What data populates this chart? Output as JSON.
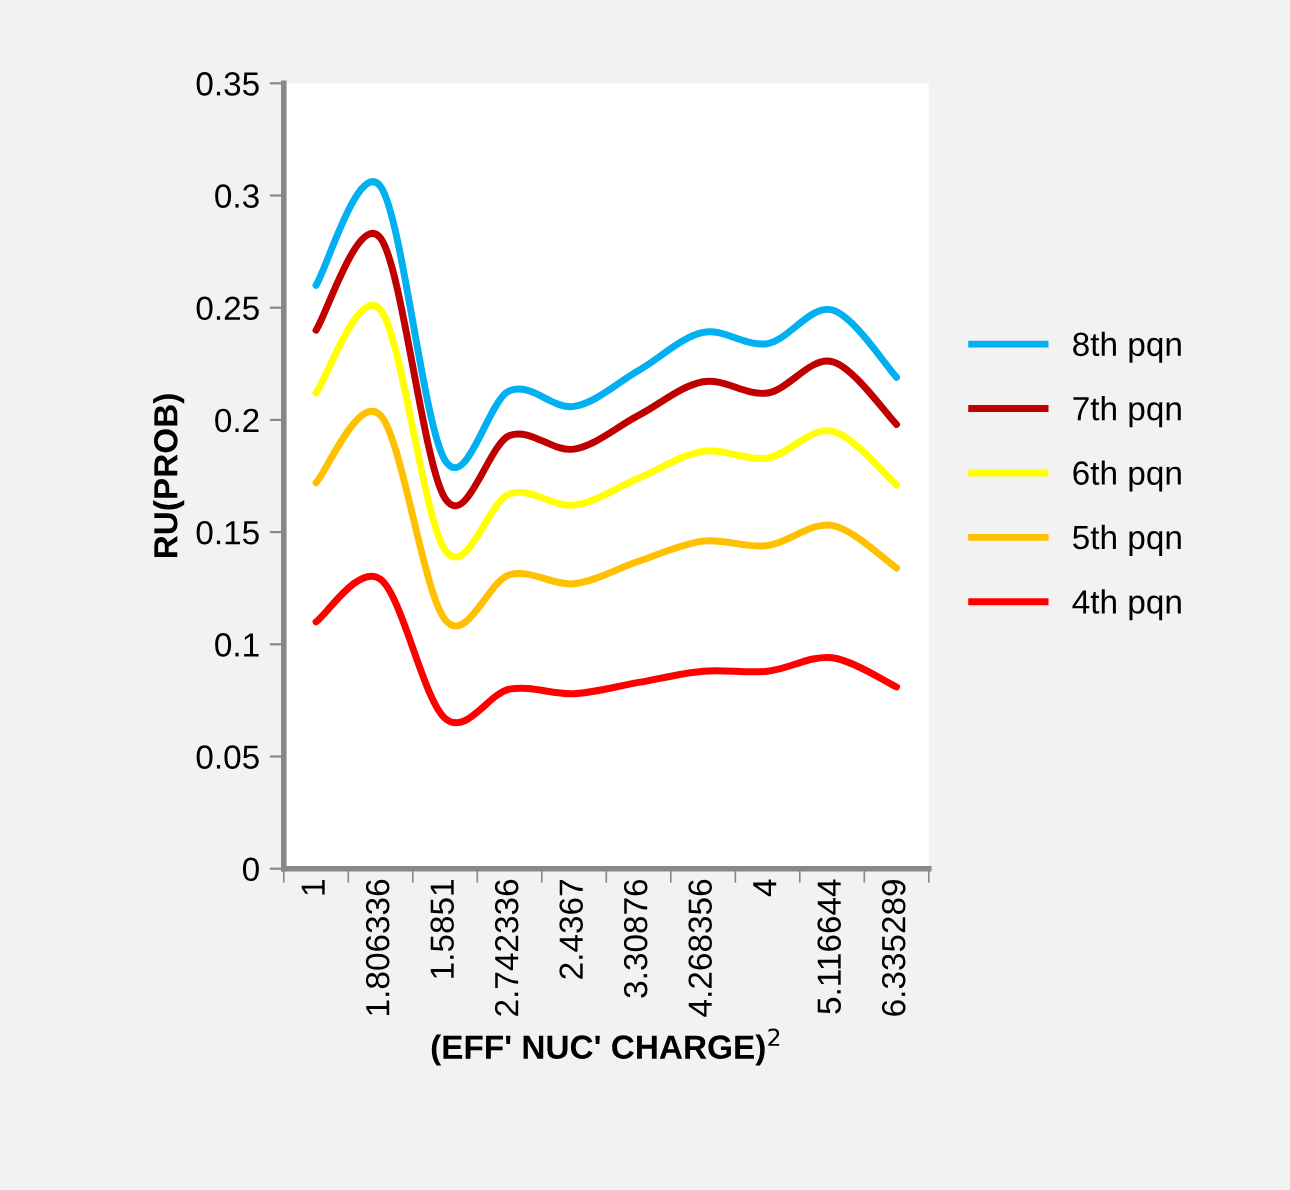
{
  "chart_data": {
    "type": "line",
    "xlabel": "(EFF' NUC' CHARGE)$^{2}$",
    "ylabel": "RU(PROB)",
    "categories": [
      "1",
      "1.806336",
      "1.5851",
      "2.742336",
      "2.4367",
      "3.30876",
      "4.268356",
      "4",
      "5.116644",
      "6.335289"
    ],
    "series": [
      {
        "name": "8th pqn",
        "color": "#00b0f0",
        "values": [
          0.26,
          0.304,
          0.182,
          0.213,
          0.206,
          0.222,
          0.239,
          0.234,
          0.249,
          0.219
        ]
      },
      {
        "name": "7th pqn",
        "color": "#c00000",
        "values": [
          0.24,
          0.281,
          0.165,
          0.193,
          0.187,
          0.202,
          0.217,
          0.212,
          0.226,
          0.198
        ]
      },
      {
        "name": "6th pqn",
        "color": "#ffff00",
        "values": [
          0.212,
          0.249,
          0.142,
          0.167,
          0.162,
          0.174,
          0.186,
          0.183,
          0.195,
          0.171
        ]
      },
      {
        "name": "5th pqn",
        "color": "#ffc000",
        "values": [
          0.172,
          0.202,
          0.111,
          0.131,
          0.127,
          0.137,
          0.146,
          0.144,
          0.153,
          0.134
        ]
      },
      {
        "name": "4th pqn",
        "color": "#ff0000",
        "values": [
          0.11,
          0.129,
          0.067,
          0.08,
          0.078,
          0.083,
          0.088,
          0.088,
          0.094,
          0.081
        ]
      }
    ],
    "ylim": [
      0,
      0.35
    ],
    "yticks": [
      0,
      0.05,
      0.1,
      0.15,
      0.2,
      0.25,
      0.3,
      0.35
    ],
    "grid": false,
    "legend": "right",
    "marker": "none",
    "line_style": "solid"
  }
}
